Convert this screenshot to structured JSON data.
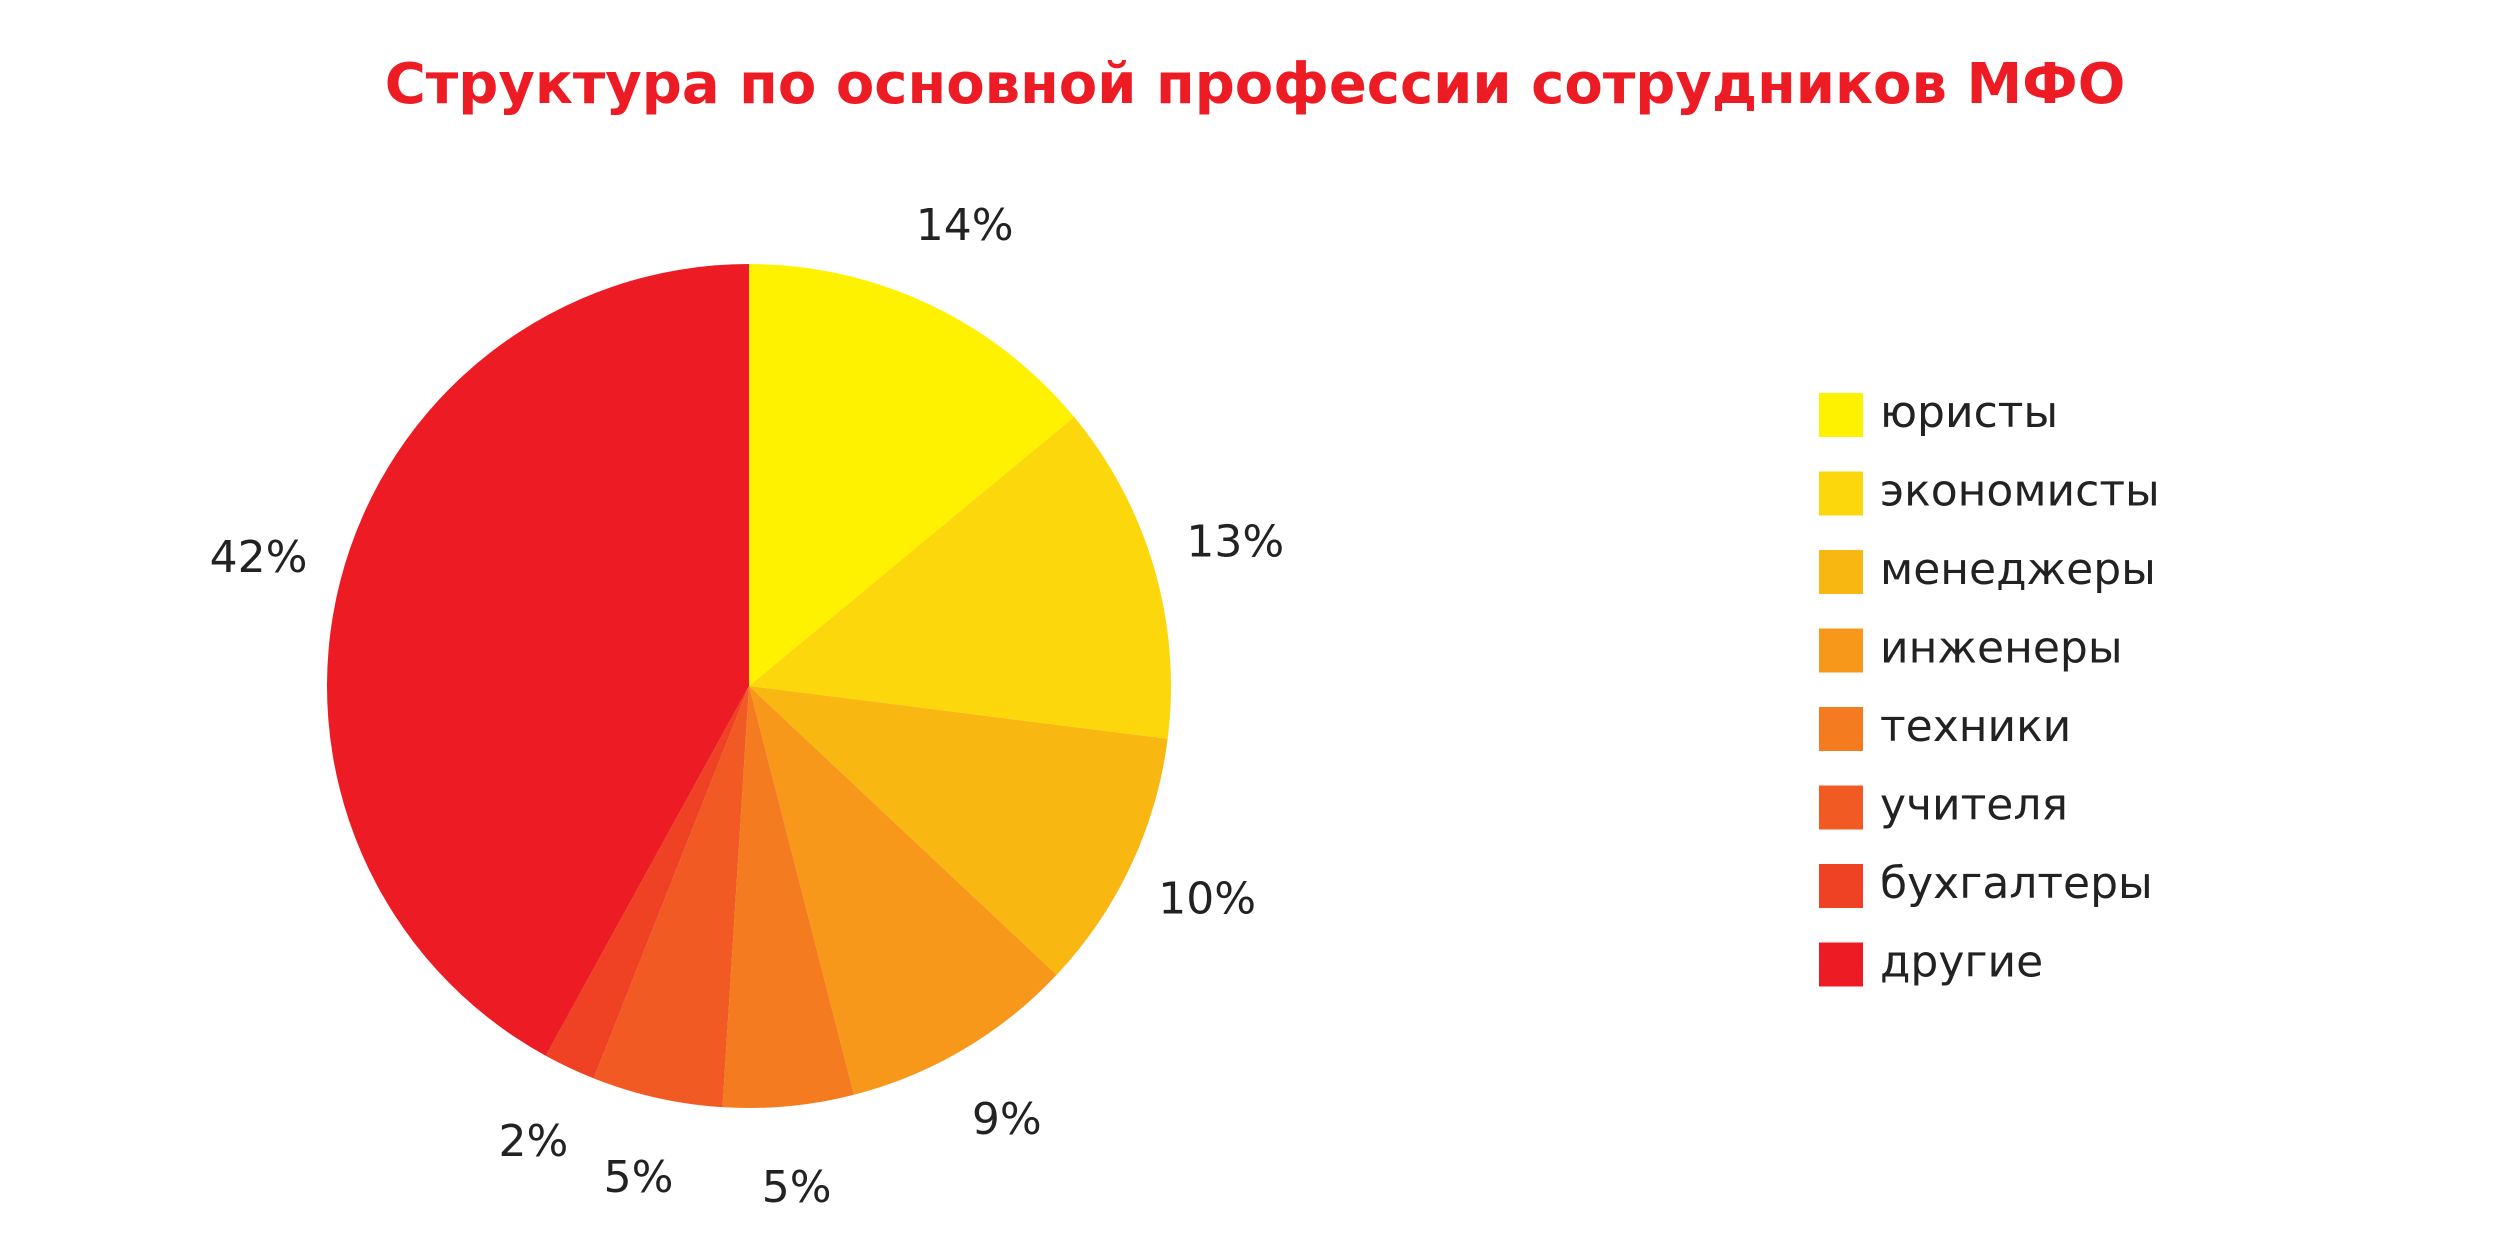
{
  "chart_data": {
    "type": "pie",
    "title": "Структура по основной профессии сотрудников МФО",
    "categories": [
      "юристы",
      "экономисты",
      "менеджеры",
      "инженеры",
      "техники",
      "учителя",
      "бухгалтеры",
      "другие"
    ],
    "values": [
      14,
      13,
      10,
      9,
      5,
      5,
      2,
      42
    ],
    "value_labels": [
      "14%",
      "13%",
      "10%",
      "9%",
      "5%",
      "5%",
      "2%",
      "42%"
    ],
    "colors": [
      "#fff200",
      "#fcd70b",
      "#f9b712",
      "#f7981a",
      "#f47b20",
      "#f15a22",
      "#ef4123",
      "#ed1c24"
    ],
    "legend": "right"
  }
}
